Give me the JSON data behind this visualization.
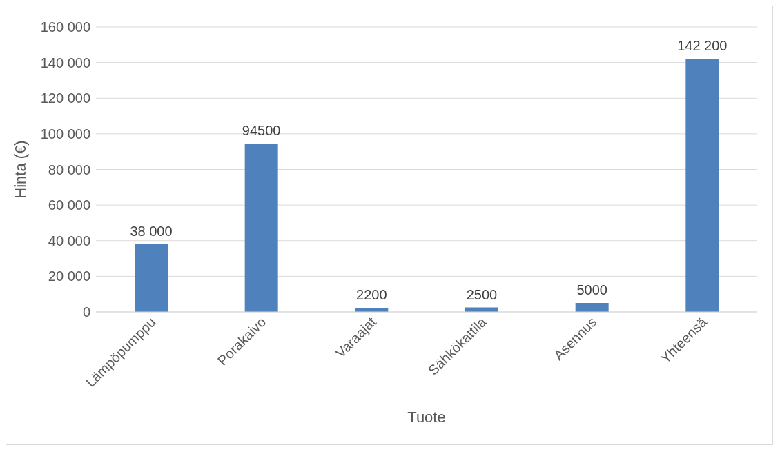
{
  "chart_data": {
    "type": "bar",
    "xlabel": "Tuote",
    "ylabel": "Hinta (€)",
    "categories": [
      "Lämpöpumppu",
      "Porakaivo",
      "Varaajat",
      "Sähkökattila",
      "Asennus",
      "Yhteensä"
    ],
    "values": [
      38000,
      94500,
      2200,
      2500,
      5000,
      142200
    ],
    "value_labels": [
      "38 000",
      "94500",
      "2200",
      "2500",
      "5000",
      "142 200"
    ],
    "color": "#4f81bd",
    "ylim": [
      0,
      160000
    ],
    "yticks": [
      {
        "value": 0,
        "label": "0"
      },
      {
        "value": 20000,
        "label": "20 000"
      },
      {
        "value": 40000,
        "label": "40 000"
      },
      {
        "value": 60000,
        "label": "60 000"
      },
      {
        "value": 80000,
        "label": "80 000"
      },
      {
        "value": 100000,
        "label": "100 000"
      },
      {
        "value": 120000,
        "label": "120 000"
      },
      {
        "value": 140000,
        "label": "140 000"
      },
      {
        "value": 160000,
        "label": "160 000"
      }
    ],
    "grid": "y",
    "legend": false
  }
}
